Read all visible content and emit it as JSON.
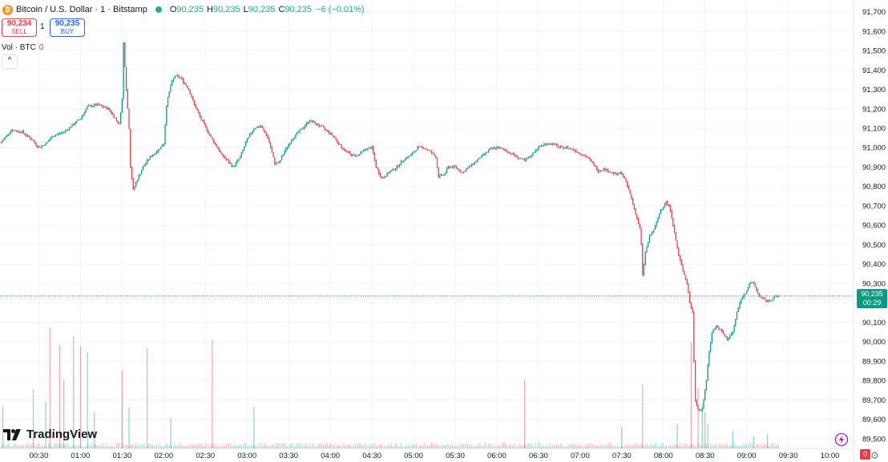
{
  "header": {
    "symbol": "Bitcoin / U.S. Dollar · 1 · Bitstamp",
    "coin_glyph": "₿",
    "o_label": "O",
    "o_value": "90,235",
    "h_label": "H",
    "h_value": "90,235",
    "l_label": "L",
    "l_value": "90,235",
    "c_label": "C",
    "c_value": "90,235",
    "change": "−6 (−0.01%)"
  },
  "trade": {
    "sell_price": "90,234",
    "sell_label": "SELL",
    "spread": "1",
    "buy_price": "90,235",
    "buy_label": "BUY"
  },
  "volume_legend": {
    "label": "Vol · BTC",
    "value": "0"
  },
  "collapse_glyph": "^",
  "logo_text": "TradingView",
  "current_price_label": {
    "price": "90,235",
    "countdown": "00:29"
  },
  "volume_badge": "0",
  "settings_glyph": "⚙",
  "colors": {
    "up": "#089981",
    "down": "#f23645",
    "grid": "#f0f3fa",
    "axis_text": "#131722",
    "price_line": "#089981"
  },
  "chart_data": {
    "type": "candlestick",
    "interval": "1 minute",
    "y_ticks": [
      89500,
      89600,
      89700,
      89800,
      89900,
      90000,
      90100,
      90200,
      90300,
      90400,
      90500,
      90600,
      90700,
      90800,
      90900,
      91000,
      91100,
      91200,
      91300,
      91400,
      91500,
      91600,
      91700
    ],
    "y_tick_labels": [
      "89,500",
      "89,600",
      "89,700",
      "89,800",
      "89,900",
      "90,000",
      "90,100",
      "90,200",
      "90,300",
      "90,400",
      "90,500",
      "90,600",
      "90,700",
      "90,800",
      "90,900",
      "91,000",
      "91,100",
      "91,200",
      "91,300",
      "91,400",
      "91,500",
      "91,600",
      "91,700"
    ],
    "ylim": [
      89450,
      91760
    ],
    "x_tick_labels": [
      "00:30",
      "01:00",
      "01:30",
      "02:00",
      "02:30",
      "03:00",
      "03:30",
      "04:00",
      "04:30",
      "05:00",
      "05:30",
      "06:00",
      "06:30",
      "07:00",
      "07:30",
      "08:00",
      "08:30",
      "09:00",
      "09:30",
      "10:00"
    ],
    "x_tick_minutes": [
      30,
      60,
      90,
      120,
      150,
      180,
      210,
      240,
      270,
      300,
      330,
      360,
      390,
      420,
      450,
      480,
      510,
      540,
      570,
      600
    ],
    "xlim_minutes": [
      2,
      617
    ],
    "last_price": 90235,
    "price_path": [
      [
        2,
        91020
      ],
      [
        10,
        91090
      ],
      [
        18,
        91080
      ],
      [
        25,
        91040
      ],
      [
        30,
        91000
      ],
      [
        35,
        91020
      ],
      [
        40,
        91060
      ],
      [
        48,
        91080
      ],
      [
        55,
        91120
      ],
      [
        60,
        91150
      ],
      [
        65,
        91210
      ],
      [
        72,
        91220
      ],
      [
        80,
        91200
      ],
      [
        85,
        91150
      ],
      [
        88,
        91120
      ],
      [
        90,
        91250
      ],
      [
        91,
        91540
      ],
      [
        93,
        91300
      ],
      [
        95,
        91100
      ],
      [
        96,
        90900
      ],
      [
        98,
        90780
      ],
      [
        100,
        90820
      ],
      [
        105,
        90900
      ],
      [
        110,
        90950
      ],
      [
        115,
        90980
      ],
      [
        120,
        91020
      ],
      [
        122,
        91220
      ],
      [
        125,
        91320
      ],
      [
        128,
        91370
      ],
      [
        132,
        91360
      ],
      [
        138,
        91300
      ],
      [
        142,
        91220
      ],
      [
        148,
        91130
      ],
      [
        155,
        91040
      ],
      [
        162,
        90960
      ],
      [
        170,
        90900
      ],
      [
        175,
        90950
      ],
      [
        180,
        91040
      ],
      [
        185,
        91100
      ],
      [
        190,
        91110
      ],
      [
        195,
        91050
      ],
      [
        200,
        90920
      ],
      [
        203,
        90920
      ],
      [
        207,
        90980
      ],
      [
        213,
        91050
      ],
      [
        220,
        91100
      ],
      [
        225,
        91140
      ],
      [
        230,
        91120
      ],
      [
        235,
        91100
      ],
      [
        242,
        91060
      ],
      [
        248,
        91000
      ],
      [
        255,
        90960
      ],
      [
        260,
        90960
      ],
      [
        265,
        90990
      ],
      [
        270,
        91000
      ],
      [
        273,
        90900
      ],
      [
        277,
        90840
      ],
      [
        282,
        90870
      ],
      [
        288,
        90900
      ],
      [
        293,
        90940
      ],
      [
        298,
        90960
      ],
      [
        303,
        91000
      ],
      [
        307,
        91000
      ],
      [
        312,
        90980
      ],
      [
        316,
        90950
      ],
      [
        318,
        90850
      ],
      [
        322,
        90860
      ],
      [
        325,
        90900
      ],
      [
        330,
        90900
      ],
      [
        335,
        90870
      ],
      [
        340,
        90900
      ],
      [
        345,
        90930
      ],
      [
        350,
        90960
      ],
      [
        355,
        90990
      ],
      [
        360,
        91000
      ],
      [
        365,
        90990
      ],
      [
        370,
        90970
      ],
      [
        375,
        90950
      ],
      [
        380,
        90930
      ],
      [
        385,
        90960
      ],
      [
        388,
        90990
      ],
      [
        392,
        91010
      ],
      [
        396,
        91020
      ],
      [
        400,
        91020
      ],
      [
        405,
        91000
      ],
      [
        410,
        91000
      ],
      [
        415,
        90990
      ],
      [
        420,
        90970
      ],
      [
        425,
        90950
      ],
      [
        430,
        90910
      ],
      [
        433,
        90880
      ],
      [
        437,
        90890
      ],
      [
        440,
        90880
      ],
      [
        443,
        90870
      ],
      [
        446,
        90860
      ],
      [
        450,
        90870
      ],
      [
        453,
        90820
      ],
      [
        456,
        90760
      ],
      [
        460,
        90660
      ],
      [
        463,
        90580
      ],
      [
        464,
        90500
      ],
      [
        465,
        90340
      ],
      [
        467,
        90460
      ],
      [
        470,
        90540
      ],
      [
        474,
        90590
      ],
      [
        478,
        90680
      ],
      [
        482,
        90720
      ],
      [
        485,
        90680
      ],
      [
        487,
        90600
      ],
      [
        489,
        90520
      ],
      [
        491,
        90440
      ],
      [
        494,
        90370
      ],
      [
        497,
        90300
      ],
      [
        499,
        90200
      ],
      [
        501,
        90150
      ],
      [
        502,
        89900
      ],
      [
        503,
        89700
      ],
      [
        505,
        89650
      ],
      [
        508,
        89650
      ],
      [
        511,
        89800
      ],
      [
        513,
        89950
      ],
      [
        515,
        90050
      ],
      [
        518,
        90080
      ],
      [
        522,
        90050
      ],
      [
        526,
        90010
      ],
      [
        530,
        90050
      ],
      [
        533,
        90150
      ],
      [
        536,
        90220
      ],
      [
        539,
        90250
      ],
      [
        542,
        90300
      ],
      [
        545,
        90300
      ],
      [
        548,
        90250
      ],
      [
        551,
        90220
      ],
      [
        554,
        90210
      ],
      [
        557,
        90210
      ],
      [
        560,
        90230
      ],
      [
        563,
        90235
      ]
    ],
    "volume_spikes": [
      [
        4,
        0.35,
        "up"
      ],
      [
        26,
        0.49,
        "up"
      ],
      [
        35,
        0.39,
        "up"
      ],
      [
        38,
        1.0,
        "down"
      ],
      [
        45,
        0.86,
        "down"
      ],
      [
        48,
        0.57,
        "down"
      ],
      [
        55,
        0.93,
        "up"
      ],
      [
        60,
        0.85,
        "down"
      ],
      [
        65,
        0.8,
        "up"
      ],
      [
        70,
        0.3,
        "up"
      ],
      [
        90,
        0.65,
        "down"
      ],
      [
        95,
        0.34,
        "up"
      ],
      [
        108,
        0.84,
        "down"
      ],
      [
        125,
        0.25,
        "up"
      ],
      [
        155,
        0.9,
        "down"
      ],
      [
        185,
        0.35,
        "up"
      ],
      [
        380,
        0.57,
        "down"
      ],
      [
        450,
        0.18,
        "up"
      ],
      [
        465,
        0.53,
        "down"
      ],
      [
        490,
        0.2,
        "up"
      ],
      [
        500,
        0.88,
        "down"
      ],
      [
        505,
        0.5,
        "down"
      ],
      [
        508,
        0.37,
        "up"
      ],
      [
        510,
        0.3,
        "down"
      ],
      [
        512,
        0.2,
        "up"
      ],
      [
        530,
        0.14,
        "up"
      ],
      [
        545,
        0.1,
        "up"
      ],
      [
        555,
        0.12,
        "up"
      ]
    ]
  }
}
